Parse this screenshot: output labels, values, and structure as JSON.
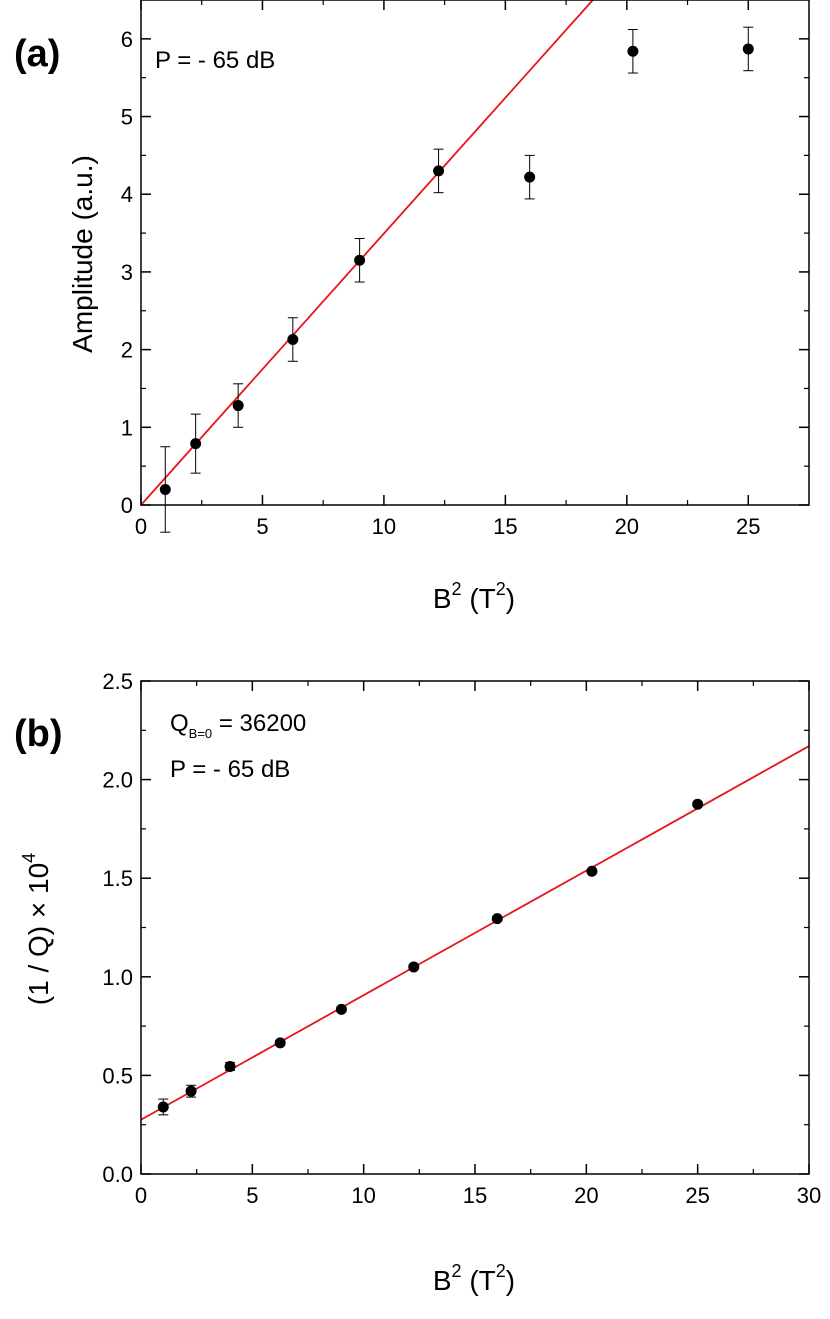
{
  "colors": {
    "fit": "#e8141c",
    "points": "#000000",
    "axes": "#000000"
  },
  "chart_data": [
    {
      "type": "scatter",
      "panel_label": "(a)",
      "annotations": [
        "P = - 65 dB"
      ],
      "xlabel": {
        "base": "B",
        "sup": "2",
        "unit_open": " (T",
        "unit_sup": "2",
        "unit_close": ")"
      },
      "ylabel": "Amplitude (a.u.)",
      "xlim": [
        0,
        27.5
      ],
      "ylim": [
        0,
        6.5
      ],
      "xticks": [
        0,
        5,
        10,
        15,
        20,
        25
      ],
      "xtick_labels": [
        "0",
        "5",
        "10",
        "15",
        "20",
        "25"
      ],
      "yticks": [
        0,
        1,
        2,
        3,
        4,
        5,
        6
      ],
      "ytick_labels": [
        "0",
        "1",
        "2",
        "3",
        "4",
        "5",
        "6"
      ],
      "points": [
        {
          "x": 1.0,
          "y": 0.2,
          "err": 0.55
        },
        {
          "x": 2.25,
          "y": 0.79,
          "err": 0.38
        },
        {
          "x": 4.0,
          "y": 1.28,
          "err": 0.28
        },
        {
          "x": 6.25,
          "y": 2.13,
          "err": 0.28
        },
        {
          "x": 9.0,
          "y": 3.15,
          "err": 0.28
        },
        {
          "x": 12.25,
          "y": 4.3,
          "err": 0.28
        },
        {
          "x": 16.0,
          "y": 4.22,
          "err": 0.28
        },
        {
          "x": 20.25,
          "y": 5.84,
          "err": 0.28
        },
        {
          "x": 25.0,
          "y": 5.87,
          "err": 0.28
        }
      ],
      "fit": {
        "x": [
          0,
          18.6
        ],
        "y": [
          0.0,
          6.5
        ]
      }
    },
    {
      "type": "scatter",
      "panel_label": "(b)",
      "annotations": [
        {
          "main": "Q",
          "sub": "B=0",
          "rest": " = 36200"
        },
        "P = - 65 dB"
      ],
      "xlabel": {
        "base": "B",
        "sup": "2",
        "unit_open": " (T",
        "unit_sup": "2",
        "unit_close": ")"
      },
      "ylabel": {
        "main": "(1 / Q) × 10",
        "sup": "4"
      },
      "xlim": [
        0,
        30
      ],
      "ylim": [
        0,
        2.5
      ],
      "xticks": [
        0,
        5,
        10,
        15,
        20,
        25,
        30
      ],
      "xtick_labels": [
        "0",
        "5",
        "10",
        "15",
        "20",
        "25",
        "30"
      ],
      "yticks": [
        0,
        0.5,
        1.0,
        1.5,
        2.0,
        2.5
      ],
      "ytick_labels": [
        "0.0",
        "0.5",
        "1.0",
        "1.5",
        "2.0",
        "2.5"
      ],
      "points": [
        {
          "x": 1.0,
          "y": 0.34,
          "err": 0.04
        },
        {
          "x": 2.25,
          "y": 0.42,
          "err": 0.03
        },
        {
          "x": 4.0,
          "y": 0.545,
          "err": 0.02
        },
        {
          "x": 6.25,
          "y": 0.665,
          "err": 0.012
        },
        {
          "x": 9.0,
          "y": 0.835,
          "err": 0.012
        },
        {
          "x": 12.25,
          "y": 1.05,
          "err": 0.01
        },
        {
          "x": 16.0,
          "y": 1.295,
          "err": 0.01
        },
        {
          "x": 20.25,
          "y": 1.535,
          "err": 0.01
        },
        {
          "x": 25.0,
          "y": 1.875,
          "err": 0.01
        }
      ],
      "fit": {
        "x": [
          0,
          30
        ],
        "y": [
          0.275,
          2.17
        ]
      }
    }
  ]
}
